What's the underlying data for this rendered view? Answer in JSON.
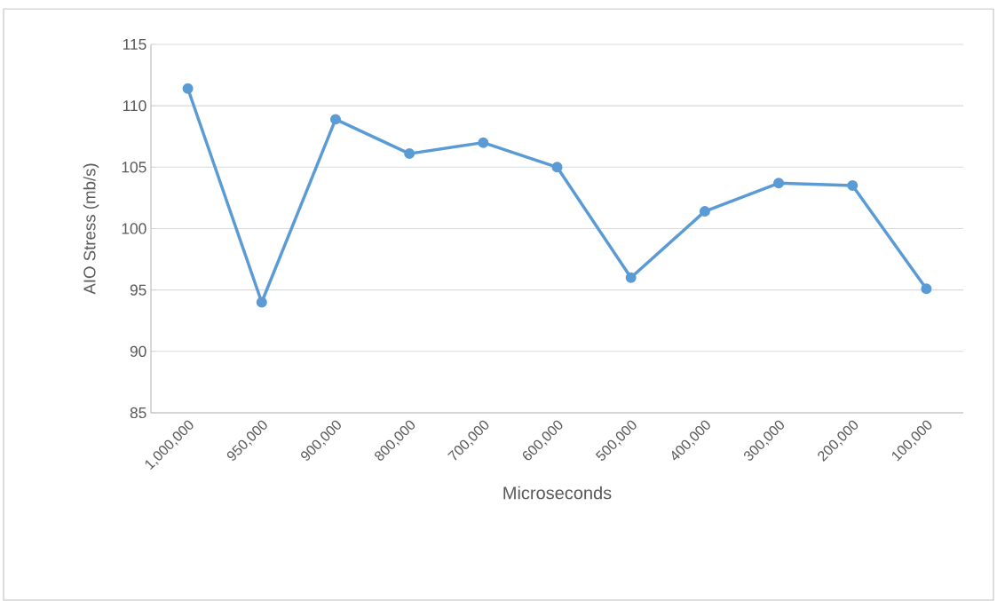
{
  "chart_data": {
    "type": "line",
    "xlabel": "Microseconds",
    "ylabel": "AIO Stress (mb/s)",
    "categories": [
      "1,000,000",
      "950,000",
      "900,000",
      "800,000",
      "700,000",
      "600,000",
      "500,000",
      "400,000",
      "300,000",
      "200,000",
      "100,000"
    ],
    "values": [
      111.4,
      94.0,
      108.9,
      106.1,
      107.0,
      105.0,
      96.0,
      101.4,
      103.7,
      103.5,
      95.1
    ],
    "color": "#5b9bd5",
    "ylim": [
      85,
      115
    ],
    "yticks": [
      85,
      90,
      95,
      100,
      105,
      110,
      115
    ],
    "grid": "y",
    "marker": "circle",
    "line_style": "solid"
  }
}
